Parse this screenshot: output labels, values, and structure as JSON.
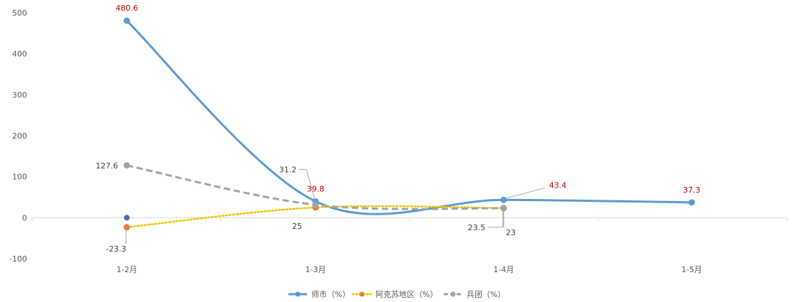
{
  "chart_data": {
    "type": "line",
    "categories": [
      "1-2月",
      "1-3月",
      "1-4月",
      "1-5月"
    ],
    "ylim": [
      -100,
      500
    ],
    "yticks": [
      -100,
      0,
      100,
      200,
      300,
      400,
      500
    ],
    "grid": false,
    "legend_position": "bottom",
    "series": [
      {
        "name": "师市（%）",
        "values": [
          480.6,
          39.8,
          43.4,
          37.3
        ],
        "color": "#5B9BD5",
        "dash": "solid",
        "label_color": "#C00000",
        "smooth": true
      },
      {
        "name": "阿克苏地区（%）",
        "values": [
          -23.3,
          25,
          23.5,
          null
        ],
        "color": "#F2C200",
        "marker_color": "#ED7D31",
        "dash": "dotted",
        "label_color": "#404040",
        "smooth": true
      },
      {
        "name": "兵团（%）",
        "values": [
          127.6,
          31.2,
          23,
          null
        ],
        "color": "#A5A5A5",
        "dash": "dashed",
        "label_color": "#404040",
        "smooth": true
      }
    ],
    "data_labels": [
      {
        "series": 0,
        "index": 0,
        "text": "480.6"
      },
      {
        "series": 0,
        "index": 1,
        "text": "39.8"
      },
      {
        "series": 0,
        "index": 2,
        "text": "43.4"
      },
      {
        "series": 0,
        "index": 3,
        "text": "37.3"
      },
      {
        "series": 1,
        "index": 0,
        "text": "-23.3"
      },
      {
        "series": 1,
        "index": 1,
        "text": "25"
      },
      {
        "series": 1,
        "index": 2,
        "text": "23.5"
      },
      {
        "series": 2,
        "index": 0,
        "text": "127.6"
      },
      {
        "series": 2,
        "index": 1,
        "text": "31.2"
      },
      {
        "series": 2,
        "index": 2,
        "text": "23"
      }
    ],
    "extra_points": [
      {
        "index": 0,
        "value": 0,
        "color": "#4472C4"
      }
    ]
  }
}
